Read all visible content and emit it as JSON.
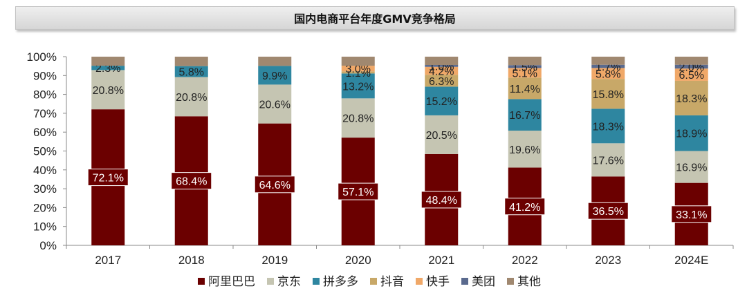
{
  "chart_data": {
    "type": "bar",
    "stacked": true,
    "title": "国内电商平台年度GMV竞争格局",
    "categories": [
      "2017",
      "2018",
      "2019",
      "2020",
      "2021",
      "2022",
      "2023",
      "2024E"
    ],
    "yticks": [
      "0%",
      "10%",
      "20%",
      "30%",
      "40%",
      "50%",
      "60%",
      "70%",
      "80%",
      "90%",
      "100%"
    ],
    "ylim": [
      0,
      100
    ],
    "legend_position": "bottom",
    "series": [
      {
        "name": "阿里巴巴",
        "color": "#6b0000",
        "values": [
          72.1,
          68.4,
          64.6,
          57.1,
          48.4,
          41.2,
          36.5,
          33.1
        ],
        "labels": [
          "72.1%",
          "68.4%",
          "64.6%",
          "57.1%",
          "48.4%",
          "41.2%",
          "36.5%",
          "33.1%"
        ]
      },
      {
        "name": "京东",
        "color": "#c5c5b2",
        "values": [
          20.8,
          20.8,
          20.6,
          20.8,
          20.5,
          19.6,
          17.6,
          16.9
        ],
        "labels": [
          "20.8%",
          "20.8%",
          "20.6%",
          "20.8%",
          "20.5%",
          "19.6%",
          "17.6%",
          "16.9%"
        ]
      },
      {
        "name": "拼多多",
        "color": "#2e86a0",
        "values": [
          2.3,
          5.8,
          9.9,
          13.2,
          15.2,
          16.7,
          18.3,
          18.9
        ],
        "labels": [
          "2.3%",
          "5.8%",
          "9.9%",
          "13.2%",
          "15.2%",
          "16.7%",
          "18.3%",
          "18.9%"
        ]
      },
      {
        "name": "抖音",
        "color": "#c8a868",
        "values": [
          0,
          0,
          0,
          1.1,
          6.3,
          11.4,
          15.8,
          18.3
        ],
        "labels": [
          "",
          "",
          "",
          "1.1%",
          "6.3%",
          "11.4%",
          "15.8%",
          "18.3%"
        ]
      },
      {
        "name": "快手",
        "color": "#f0a868",
        "values": [
          0,
          0,
          0,
          3.0,
          4.2,
          5.1,
          5.8,
          6.5
        ],
        "labels": [
          "",
          "",
          "",
          "3.0%",
          "4.2%",
          "5.1%",
          "5.8%",
          "6.5%"
        ]
      },
      {
        "name": "美团",
        "color": "#5a6a8e",
        "values": [
          0,
          0,
          0,
          0,
          1.0,
          1.5,
          1.7,
          2.0
        ],
        "labels": [
          "",
          "",
          "",
          "",
          "1.0%",
          "1.5%",
          "1.7%",
          "2.0%"
        ]
      },
      {
        "name": "其他",
        "color": "#a08870",
        "values": [
          4.8,
          5.0,
          4.9,
          4.8,
          4.4,
          4.5,
          4.3,
          4.3
        ],
        "labels": [
          "",
          "",
          "",
          "",
          "",
          "",
          "",
          ""
        ]
      }
    ]
  }
}
